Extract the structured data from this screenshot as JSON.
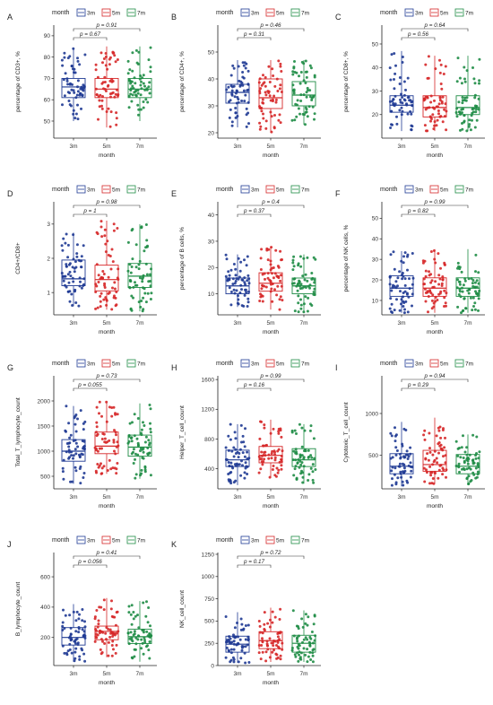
{
  "figure": {
    "legend_title": "month",
    "groups": [
      "3m",
      "5m",
      "7m"
    ],
    "xlabel": "month",
    "colors": {
      "3m": "#1f3a93",
      "5m": "#d62728",
      "7m": "#1e8c45"
    }
  },
  "chart_data": [
    {
      "type": "box",
      "letter": "A",
      "ylabel": "percentage of CD3+, %",
      "ylim": [
        42,
        95
      ],
      "yticks": [
        50,
        60,
        70,
        80,
        90
      ],
      "boxes": [
        {
          "group": "3m",
          "q1": 61,
          "median": 66,
          "q3": 70,
          "low": 50,
          "high": 84
        },
        {
          "group": "5m",
          "q1": 61,
          "median": 65,
          "q3": 70,
          "low": 47,
          "high": 85
        },
        {
          "group": "7m",
          "q1": 61,
          "median": 65,
          "q3": 70,
          "low": 50,
          "high": 85
        }
      ],
      "comparisons": [
        {
          "from": "3m",
          "to": "5m",
          "p": "p = 0.67"
        },
        {
          "from": "3m",
          "to": "7m",
          "p": "p = 0.91"
        }
      ]
    },
    {
      "type": "box",
      "letter": "B",
      "ylabel": "percentage of CD4+, %",
      "ylim": [
        18,
        60
      ],
      "yticks": [
        20,
        30,
        40,
        50
      ],
      "boxes": [
        {
          "group": "3m",
          "q1": 31,
          "median": 35,
          "q3": 38,
          "low": 22,
          "high": 47
        },
        {
          "group": "5m",
          "q1": 29,
          "median": 33,
          "q3": 40,
          "low": 20,
          "high": 47
        },
        {
          "group": "7m",
          "q1": 30,
          "median": 34,
          "q3": 39,
          "low": 23,
          "high": 47
        }
      ],
      "comparisons": [
        {
          "from": "3m",
          "to": "5m",
          "p": "p = 0.31"
        },
        {
          "from": "3m",
          "to": "7m",
          "p": "p = 0.46"
        }
      ]
    },
    {
      "type": "box",
      "letter": "C",
      "ylabel": "percentage of CD8+, %",
      "ylim": [
        10,
        58
      ],
      "yticks": [
        20,
        30,
        40,
        50
      ],
      "boxes": [
        {
          "group": "3m",
          "q1": 21,
          "median": 24,
          "q3": 28,
          "low": 13,
          "high": 47
        },
        {
          "group": "5m",
          "q1": 19,
          "median": 23,
          "q3": 28,
          "low": 13,
          "high": 45
        },
        {
          "group": "7m",
          "q1": 20,
          "median": 23,
          "q3": 28,
          "low": 13,
          "high": 45
        }
      ],
      "comparisons": [
        {
          "from": "3m",
          "to": "5m",
          "p": "p = 0.56"
        },
        {
          "from": "3m",
          "to": "7m",
          "p": "p = 0.64"
        }
      ]
    },
    {
      "type": "box",
      "letter": "D",
      "ylabel": "CD4+/CD8+",
      "ylim": [
        0.35,
        3.65
      ],
      "yticks": [
        1,
        2,
        3
      ],
      "boxes": [
        {
          "group": "3m",
          "q1": 1.2,
          "median": 1.4,
          "q3": 1.95,
          "low": 0.6,
          "high": 2.75
        },
        {
          "group": "5m",
          "q1": 1.05,
          "median": 1.38,
          "q3": 1.8,
          "low": 0.5,
          "high": 3.1
        },
        {
          "group": "7m",
          "q1": 1.15,
          "median": 1.48,
          "q3": 1.85,
          "low": 0.45,
          "high": 3.0
        }
      ],
      "comparisons": [
        {
          "from": "3m",
          "to": "5m",
          "p": "p = 1"
        },
        {
          "from": "3m",
          "to": "7m",
          "p": "p = 0.98"
        }
      ]
    },
    {
      "type": "box",
      "letter": "E",
      "ylabel": "percentage of B cells, %",
      "ylim": [
        2,
        45
      ],
      "yticks": [
        10,
        20,
        30,
        40
      ],
      "boxes": [
        {
          "group": "3m",
          "q1": 10,
          "median": 13,
          "q3": 16,
          "low": 5,
          "high": 25
        },
        {
          "group": "5m",
          "q1": 11,
          "median": 14,
          "q3": 18,
          "low": 4,
          "high": 28
        },
        {
          "group": "7m",
          "q1": 10,
          "median": 13,
          "q3": 16,
          "low": 3,
          "high": 25
        }
      ],
      "comparisons": [
        {
          "from": "3m",
          "to": "5m",
          "p": "p = 0.37"
        },
        {
          "from": "3m",
          "to": "7m",
          "p": "p = 0.4"
        }
      ]
    },
    {
      "type": "box",
      "letter": "F",
      "ylabel": "percentage of NK cells, %",
      "ylim": [
        3,
        58
      ],
      "yticks": [
        10,
        20,
        30,
        40,
        50
      ],
      "boxes": [
        {
          "group": "3m",
          "q1": 12,
          "median": 16,
          "q3": 22,
          "low": 4,
          "high": 34
        },
        {
          "group": "5m",
          "q1": 12,
          "median": 16,
          "q3": 21,
          "low": 4,
          "high": 35
        },
        {
          "group": "7m",
          "q1": 12,
          "median": 16,
          "q3": 21,
          "low": 4,
          "high": 35
        }
      ],
      "comparisons": [
        {
          "from": "3m",
          "to": "5m",
          "p": "p = 0.82"
        },
        {
          "from": "3m",
          "to": "7m",
          "p": "p = 0.99"
        }
      ]
    },
    {
      "type": "box",
      "letter": "G",
      "ylabel": "Total_T_lymphocyte_count",
      "ylim": [
        250,
        2500
      ],
      "yticks": [
        500,
        1000,
        1500,
        2000
      ],
      "boxes": [
        {
          "group": "3m",
          "q1": 800,
          "median": 1000,
          "q3": 1230,
          "low": 350,
          "high": 1900
        },
        {
          "group": "5m",
          "q1": 950,
          "median": 1100,
          "q3": 1380,
          "low": 550,
          "high": 1980
        },
        {
          "group": "7m",
          "q1": 900,
          "median": 1080,
          "q3": 1320,
          "low": 450,
          "high": 1950
        }
      ],
      "comparisons": [
        {
          "from": "3m",
          "to": "5m",
          "p": "p = 0.055"
        },
        {
          "from": "3m",
          "to": "7m",
          "p": "p = 0.73"
        }
      ]
    },
    {
      "type": "box",
      "letter": "H",
      "ylabel": "Helper_T_cell_count",
      "ylim": [
        130,
        1650
      ],
      "yticks": [
        400,
        800,
        1200,
        1600
      ],
      "boxes": [
        {
          "group": "3m",
          "q1": 430,
          "median": 520,
          "q3": 650,
          "low": 180,
          "high": 1000
        },
        {
          "group": "5m",
          "q1": 480,
          "median": 580,
          "q3": 700,
          "low": 280,
          "high": 1060
        },
        {
          "group": "7m",
          "q1": 430,
          "median": 520,
          "q3": 670,
          "low": 200,
          "high": 1000
        }
      ],
      "comparisons": [
        {
          "from": "3m",
          "to": "5m",
          "p": "p = 0.16"
        },
        {
          "from": "3m",
          "to": "7m",
          "p": "p = 0.99"
        }
      ]
    },
    {
      "type": "box",
      "letter": "I",
      "ylabel": "Cytotoxic_T_cell_count",
      "ylim": [
        100,
        1450
      ],
      "yticks": [
        500,
        1000
      ],
      "boxes": [
        {
          "group": "3m",
          "q1": 280,
          "median": 370,
          "q3": 520,
          "low": 130,
          "high": 900
        },
        {
          "group": "5m",
          "q1": 310,
          "median": 390,
          "q3": 560,
          "low": 160,
          "high": 950
        },
        {
          "group": "7m",
          "q1": 280,
          "median": 370,
          "q3": 510,
          "low": 150,
          "high": 750
        }
      ],
      "comparisons": [
        {
          "from": "3m",
          "to": "5m",
          "p": "p = 0.29"
        },
        {
          "from": "3m",
          "to": "7m",
          "p": "p = 0.94"
        }
      ]
    },
    {
      "type": "box",
      "letter": "J",
      "ylabel": "B_lymphocyte_count",
      "ylim": [
        15,
        760
      ],
      "yticks": [
        200,
        400,
        600
      ],
      "boxes": [
        {
          "group": "3m",
          "q1": 150,
          "median": 200,
          "q3": 265,
          "low": 40,
          "high": 420
        },
        {
          "group": "5m",
          "q1": 185,
          "median": 240,
          "q3": 275,
          "low": 70,
          "high": 460
        },
        {
          "group": "7m",
          "q1": 160,
          "median": 205,
          "q3": 255,
          "low": 40,
          "high": 440
        }
      ],
      "comparisons": [
        {
          "from": "3m",
          "to": "5m",
          "p": "p = 0.056"
        },
        {
          "from": "3m",
          "to": "7m",
          "p": "p = 0.41"
        }
      ]
    },
    {
      "type": "box",
      "letter": "K",
      "ylabel": "NK_cell_count",
      "ylim": [
        0,
        1270
      ],
      "yticks": [
        0,
        250,
        500,
        750,
        1000,
        1250
      ],
      "boxes": [
        {
          "group": "3m",
          "q1": 150,
          "median": 240,
          "q3": 330,
          "low": 30,
          "high": 600
        },
        {
          "group": "5m",
          "q1": 190,
          "median": 280,
          "q3": 380,
          "low": 40,
          "high": 650
        },
        {
          "group": "7m",
          "q1": 150,
          "median": 250,
          "q3": 340,
          "low": 40,
          "high": 620
        }
      ],
      "comparisons": [
        {
          "from": "3m",
          "to": "5m",
          "p": "p = 0.17"
        },
        {
          "from": "3m",
          "to": "7m",
          "p": "p = 0.72"
        }
      ]
    }
  ]
}
